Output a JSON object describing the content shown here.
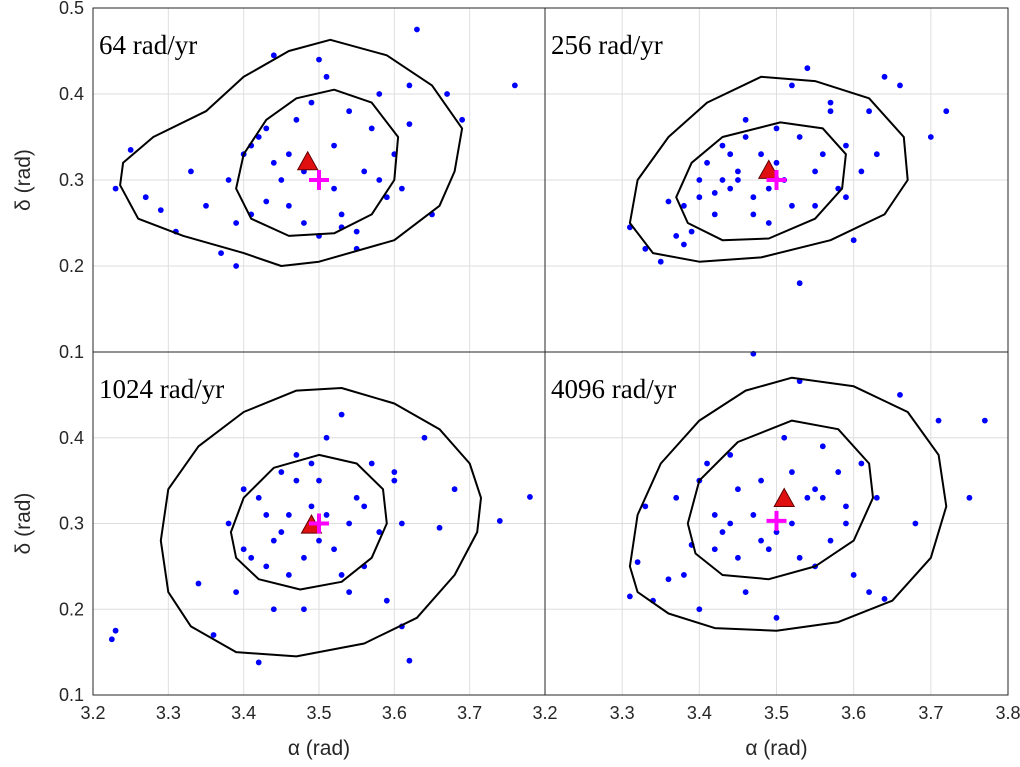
{
  "chart_data": [
    {
      "type": "scatter",
      "title": "64 rad/yr",
      "ylabel": "δ (rad)",
      "xlim": [
        3.2,
        3.8
      ],
      "ylim": [
        0.1,
        0.5
      ],
      "xticks": [
        3.2,
        3.3,
        3.4,
        3.5,
        3.6,
        3.7
      ],
      "yticks": [
        0.1,
        0.2,
        0.3,
        0.4,
        0.5
      ],
      "show_xticklabels": false,
      "show_yticklabels": true,
      "grid": true,
      "series": [
        {
          "marker": "dot",
          "color": "#0000ff",
          "x": [
            3.25,
            3.23,
            3.27,
            3.29,
            3.31,
            3.33,
            3.35,
            3.37,
            3.38,
            3.39,
            3.4,
            3.41,
            3.42,
            3.43,
            3.44,
            3.45,
            3.46,
            3.47,
            3.48,
            3.49,
            3.5,
            3.51,
            3.52,
            3.53,
            3.54,
            3.55,
            3.56,
            3.57,
            3.58,
            3.59,
            3.6,
            3.61,
            3.62,
            3.63,
            3.65,
            3.67,
            3.69,
            3.76,
            3.44,
            3.46,
            3.5,
            3.52,
            3.41,
            3.55,
            3.58,
            3.48,
            3.43,
            3.53,
            3.62,
            3.39
          ],
          "y": [
            0.335,
            0.29,
            0.28,
            0.265,
            0.24,
            0.31,
            0.27,
            0.215,
            0.3,
            0.2,
            0.33,
            0.26,
            0.35,
            0.275,
            0.445,
            0.3,
            0.33,
            0.37,
            0.25,
            0.39,
            0.44,
            0.42,
            0.34,
            0.26,
            0.38,
            0.22,
            0.31,
            0.36,
            0.4,
            0.28,
            0.33,
            0.29,
            0.365,
            0.475,
            0.26,
            0.4,
            0.37,
            0.41,
            0.32,
            0.27,
            0.235,
            0.29,
            0.34,
            0.24,
            0.3,
            0.31,
            0.36,
            0.245,
            0.41,
            0.25
          ]
        },
        {
          "marker": "line",
          "closed": true,
          "color": "#000000",
          "x": [
            3.236,
            3.24,
            3.28,
            3.35,
            3.4,
            3.46,
            3.515,
            3.59,
            3.65,
            3.69,
            3.68,
            3.66,
            3.6,
            3.5,
            3.45,
            3.4,
            3.32,
            3.26
          ],
          "y": [
            0.294,
            0.32,
            0.35,
            0.38,
            0.42,
            0.45,
            0.463,
            0.445,
            0.41,
            0.36,
            0.31,
            0.27,
            0.23,
            0.205,
            0.2,
            0.215,
            0.235,
            0.255
          ]
        },
        {
          "marker": "line",
          "closed": true,
          "color": "#000000",
          "x": [
            3.39,
            3.4,
            3.43,
            3.47,
            3.52,
            3.57,
            3.605,
            3.6,
            3.57,
            3.52,
            3.46,
            3.41
          ],
          "y": [
            0.29,
            0.33,
            0.37,
            0.395,
            0.405,
            0.39,
            0.35,
            0.3,
            0.26,
            0.238,
            0.235,
            0.255
          ]
        },
        {
          "marker": "triangle",
          "color": "#e01010",
          "x": [
            3.485
          ],
          "y": [
            0.32
          ]
        },
        {
          "marker": "plus",
          "color": "#ff00ff",
          "x": [
            3.5
          ],
          "y": [
            0.3
          ]
        }
      ]
    },
    {
      "type": "scatter",
      "title": "256 rad/yr",
      "xlim": [
        3.2,
        3.8
      ],
      "ylim": [
        0.1,
        0.5
      ],
      "xticks": [
        3.2,
        3.3,
        3.4,
        3.5,
        3.6,
        3.7,
        3.8
      ],
      "yticks": [
        0.1,
        0.2,
        0.3,
        0.4,
        0.5
      ],
      "show_xticklabels": false,
      "show_yticklabels": false,
      "grid": true,
      "series": [
        {
          "marker": "dot",
          "color": "#0000ff",
          "x": [
            3.31,
            3.33,
            3.35,
            3.36,
            3.38,
            3.39,
            3.4,
            3.41,
            3.42,
            3.43,
            3.44,
            3.45,
            3.46,
            3.47,
            3.48,
            3.49,
            3.5,
            3.51,
            3.52,
            3.53,
            3.54,
            3.55,
            3.56,
            3.57,
            3.58,
            3.59,
            3.6,
            3.62,
            3.64,
            3.66,
            3.7,
            3.72,
            3.53,
            3.45,
            3.38,
            3.42,
            3.49,
            3.55,
            3.61,
            3.47,
            3.4,
            3.52,
            3.57,
            3.44,
            3.37,
            3.63,
            3.5,
            3.43,
            3.59,
            3.46
          ],
          "y": [
            0.245,
            0.22,
            0.205,
            0.275,
            0.27,
            0.24,
            0.3,
            0.32,
            0.26,
            0.34,
            0.29,
            0.31,
            0.37,
            0.28,
            0.33,
            0.25,
            0.36,
            0.3,
            0.41,
            0.35,
            0.43,
            0.27,
            0.33,
            0.39,
            0.29,
            0.34,
            0.23,
            0.38,
            0.42,
            0.41,
            0.35,
            0.38,
            0.18,
            0.3,
            0.225,
            0.285,
            0.29,
            0.31,
            0.31,
            0.26,
            0.28,
            0.27,
            0.38,
            0.33,
            0.235,
            0.33,
            0.32,
            0.3,
            0.28,
            0.35
          ]
        },
        {
          "marker": "line",
          "closed": true,
          "color": "#000000",
          "x": [
            3.31,
            3.32,
            3.36,
            3.41,
            3.48,
            3.55,
            3.62,
            3.665,
            3.67,
            3.64,
            3.57,
            3.48,
            3.4,
            3.34
          ],
          "y": [
            0.25,
            0.3,
            0.35,
            0.39,
            0.42,
            0.415,
            0.395,
            0.35,
            0.3,
            0.26,
            0.23,
            0.21,
            0.205,
            0.215
          ]
        },
        {
          "marker": "line",
          "closed": true,
          "color": "#000000",
          "x": [
            3.37,
            3.39,
            3.43,
            3.505,
            3.56,
            3.59,
            3.585,
            3.55,
            3.49,
            3.43,
            3.385
          ],
          "y": [
            0.28,
            0.32,
            0.35,
            0.367,
            0.36,
            0.33,
            0.29,
            0.255,
            0.232,
            0.23,
            0.25
          ]
        },
        {
          "marker": "triangle",
          "color": "#e01010",
          "x": [
            3.49
          ],
          "y": [
            0.31
          ]
        },
        {
          "marker": "plus",
          "color": "#ff00ff",
          "x": [
            3.5
          ],
          "y": [
            0.3
          ]
        }
      ]
    },
    {
      "type": "scatter",
      "title": "1024 rad/yr",
      "xlabel": "α (rad)",
      "ylabel": "δ (rad)",
      "xlim": [
        3.2,
        3.8
      ],
      "ylim": [
        0.1,
        0.5
      ],
      "xticks": [
        3.2,
        3.3,
        3.4,
        3.5,
        3.6,
        3.7
      ],
      "yticks": [
        0.1,
        0.2,
        0.3,
        0.4
      ],
      "show_xticklabels": true,
      "show_yticklabels": true,
      "grid": true,
      "series": [
        {
          "marker": "dot",
          "color": "#0000ff",
          "x": [
            3.225,
            3.23,
            3.34,
            3.36,
            3.38,
            3.39,
            3.4,
            3.41,
            3.42,
            3.43,
            3.44,
            3.45,
            3.46,
            3.47,
            3.48,
            3.49,
            3.5,
            3.51,
            3.52,
            3.53,
            3.54,
            3.55,
            3.56,
            3.57,
            3.58,
            3.59,
            3.6,
            3.61,
            3.62,
            3.64,
            3.66,
            3.68,
            3.74,
            3.78,
            3.42,
            3.45,
            3.48,
            3.51,
            3.54,
            3.47,
            3.5,
            3.43,
            3.56,
            3.4,
            3.6,
            3.46,
            3.53,
            3.49,
            3.44,
            3.61
          ],
          "y": [
            0.165,
            0.175,
            0.23,
            0.17,
            0.3,
            0.22,
            0.34,
            0.26,
            0.138,
            0.31,
            0.28,
            0.36,
            0.24,
            0.38,
            0.2,
            0.32,
            0.35,
            0.4,
            0.27,
            0.427,
            0.3,
            0.33,
            0.25,
            0.37,
            0.29,
            0.21,
            0.35,
            0.18,
            0.14,
            0.4,
            0.295,
            0.34,
            0.303,
            0.331,
            0.33,
            0.29,
            0.26,
            0.31,
            0.22,
            0.35,
            0.28,
            0.25,
            0.32,
            0.27,
            0.36,
            0.31,
            0.24,
            0.37,
            0.2,
            0.3
          ]
        },
        {
          "marker": "line",
          "closed": true,
          "color": "#000000",
          "x": [
            3.29,
            3.3,
            3.34,
            3.4,
            3.47,
            3.53,
            3.6,
            3.66,
            3.7,
            3.715,
            3.71,
            3.68,
            3.63,
            3.56,
            3.47,
            3.39,
            3.33,
            3.3
          ],
          "y": [
            0.28,
            0.34,
            0.39,
            0.43,
            0.455,
            0.458,
            0.44,
            0.41,
            0.37,
            0.33,
            0.29,
            0.24,
            0.19,
            0.16,
            0.145,
            0.15,
            0.18,
            0.22
          ]
        },
        {
          "marker": "line",
          "closed": true,
          "color": "#000000",
          "x": [
            3.383,
            3.4,
            3.44,
            3.5,
            3.55,
            3.585,
            3.59,
            3.57,
            3.53,
            3.475,
            3.42,
            3.39
          ],
          "y": [
            0.29,
            0.33,
            0.365,
            0.38,
            0.37,
            0.34,
            0.3,
            0.26,
            0.232,
            0.223,
            0.235,
            0.26
          ]
        },
        {
          "marker": "triangle",
          "color": "#e01010",
          "x": [
            3.49
          ],
          "y": [
            0.297
          ]
        },
        {
          "marker": "plus",
          "color": "#ff00ff",
          "x": [
            3.5
          ],
          "y": [
            0.3
          ]
        }
      ]
    },
    {
      "type": "scatter",
      "title": "4096 rad/yr",
      "xlabel": "α (rad)",
      "xlim": [
        3.2,
        3.8
      ],
      "ylim": [
        0.1,
        0.5
      ],
      "xticks": [
        3.2,
        3.3,
        3.4,
        3.5,
        3.6,
        3.7,
        3.8
      ],
      "yticks": [
        0.1,
        0.2,
        0.3,
        0.4,
        0.5
      ],
      "show_xticklabels": true,
      "show_yticklabels": false,
      "grid": true,
      "series": [
        {
          "marker": "dot",
          "color": "#0000ff",
          "x": [
            3.31,
            3.32,
            3.33,
            3.34,
            3.36,
            3.37,
            3.38,
            3.39,
            3.4,
            3.41,
            3.42,
            3.43,
            3.44,
            3.45,
            3.46,
            3.47,
            3.48,
            3.49,
            3.5,
            3.51,
            3.52,
            3.53,
            3.54,
            3.55,
            3.56,
            3.57,
            3.58,
            3.59,
            3.6,
            3.61,
            3.62,
            3.63,
            3.64,
            3.66,
            3.68,
            3.71,
            3.75,
            3.77,
            3.47,
            3.45,
            3.5,
            3.53,
            3.42,
            3.56,
            3.4,
            3.59,
            3.48,
            3.52,
            3.44,
            3.55
          ],
          "y": [
            0.215,
            0.255,
            0.32,
            0.21,
            0.235,
            0.33,
            0.24,
            0.275,
            0.2,
            0.37,
            0.31,
            0.29,
            0.38,
            0.26,
            0.22,
            0.498,
            0.35,
            0.27,
            0.19,
            0.4,
            0.3,
            0.466,
            0.33,
            0.25,
            0.39,
            0.28,
            0.36,
            0.32,
            0.24,
            0.37,
            0.22,
            0.33,
            0.212,
            0.45,
            0.3,
            0.42,
            0.33,
            0.42,
            0.31,
            0.34,
            0.29,
            0.26,
            0.27,
            0.33,
            0.35,
            0.3,
            0.28,
            0.36,
            0.3,
            0.34
          ]
        },
        {
          "marker": "line",
          "closed": true,
          "color": "#000000",
          "x": [
            3.31,
            3.32,
            3.35,
            3.4,
            3.46,
            3.52,
            3.6,
            3.67,
            3.71,
            3.72,
            3.7,
            3.65,
            3.58,
            3.5,
            3.42,
            3.36,
            3.32
          ],
          "y": [
            0.25,
            0.31,
            0.37,
            0.42,
            0.455,
            0.47,
            0.46,
            0.43,
            0.38,
            0.32,
            0.26,
            0.21,
            0.185,
            0.175,
            0.178,
            0.195,
            0.22
          ]
        },
        {
          "marker": "line",
          "closed": true,
          "color": "#000000",
          "x": [
            3.385,
            3.4,
            3.45,
            3.52,
            3.58,
            3.62,
            3.625,
            3.6,
            3.55,
            3.49,
            3.43,
            3.395
          ],
          "y": [
            0.3,
            0.35,
            0.395,
            0.42,
            0.41,
            0.37,
            0.33,
            0.28,
            0.25,
            0.235,
            0.24,
            0.265
          ]
        },
        {
          "marker": "triangle",
          "color": "#e01010",
          "x": [
            3.51
          ],
          "y": [
            0.328
          ]
        },
        {
          "marker": "plus",
          "color": "#ff00ff",
          "x": [
            3.5
          ],
          "y": [
            0.303
          ]
        }
      ]
    }
  ]
}
